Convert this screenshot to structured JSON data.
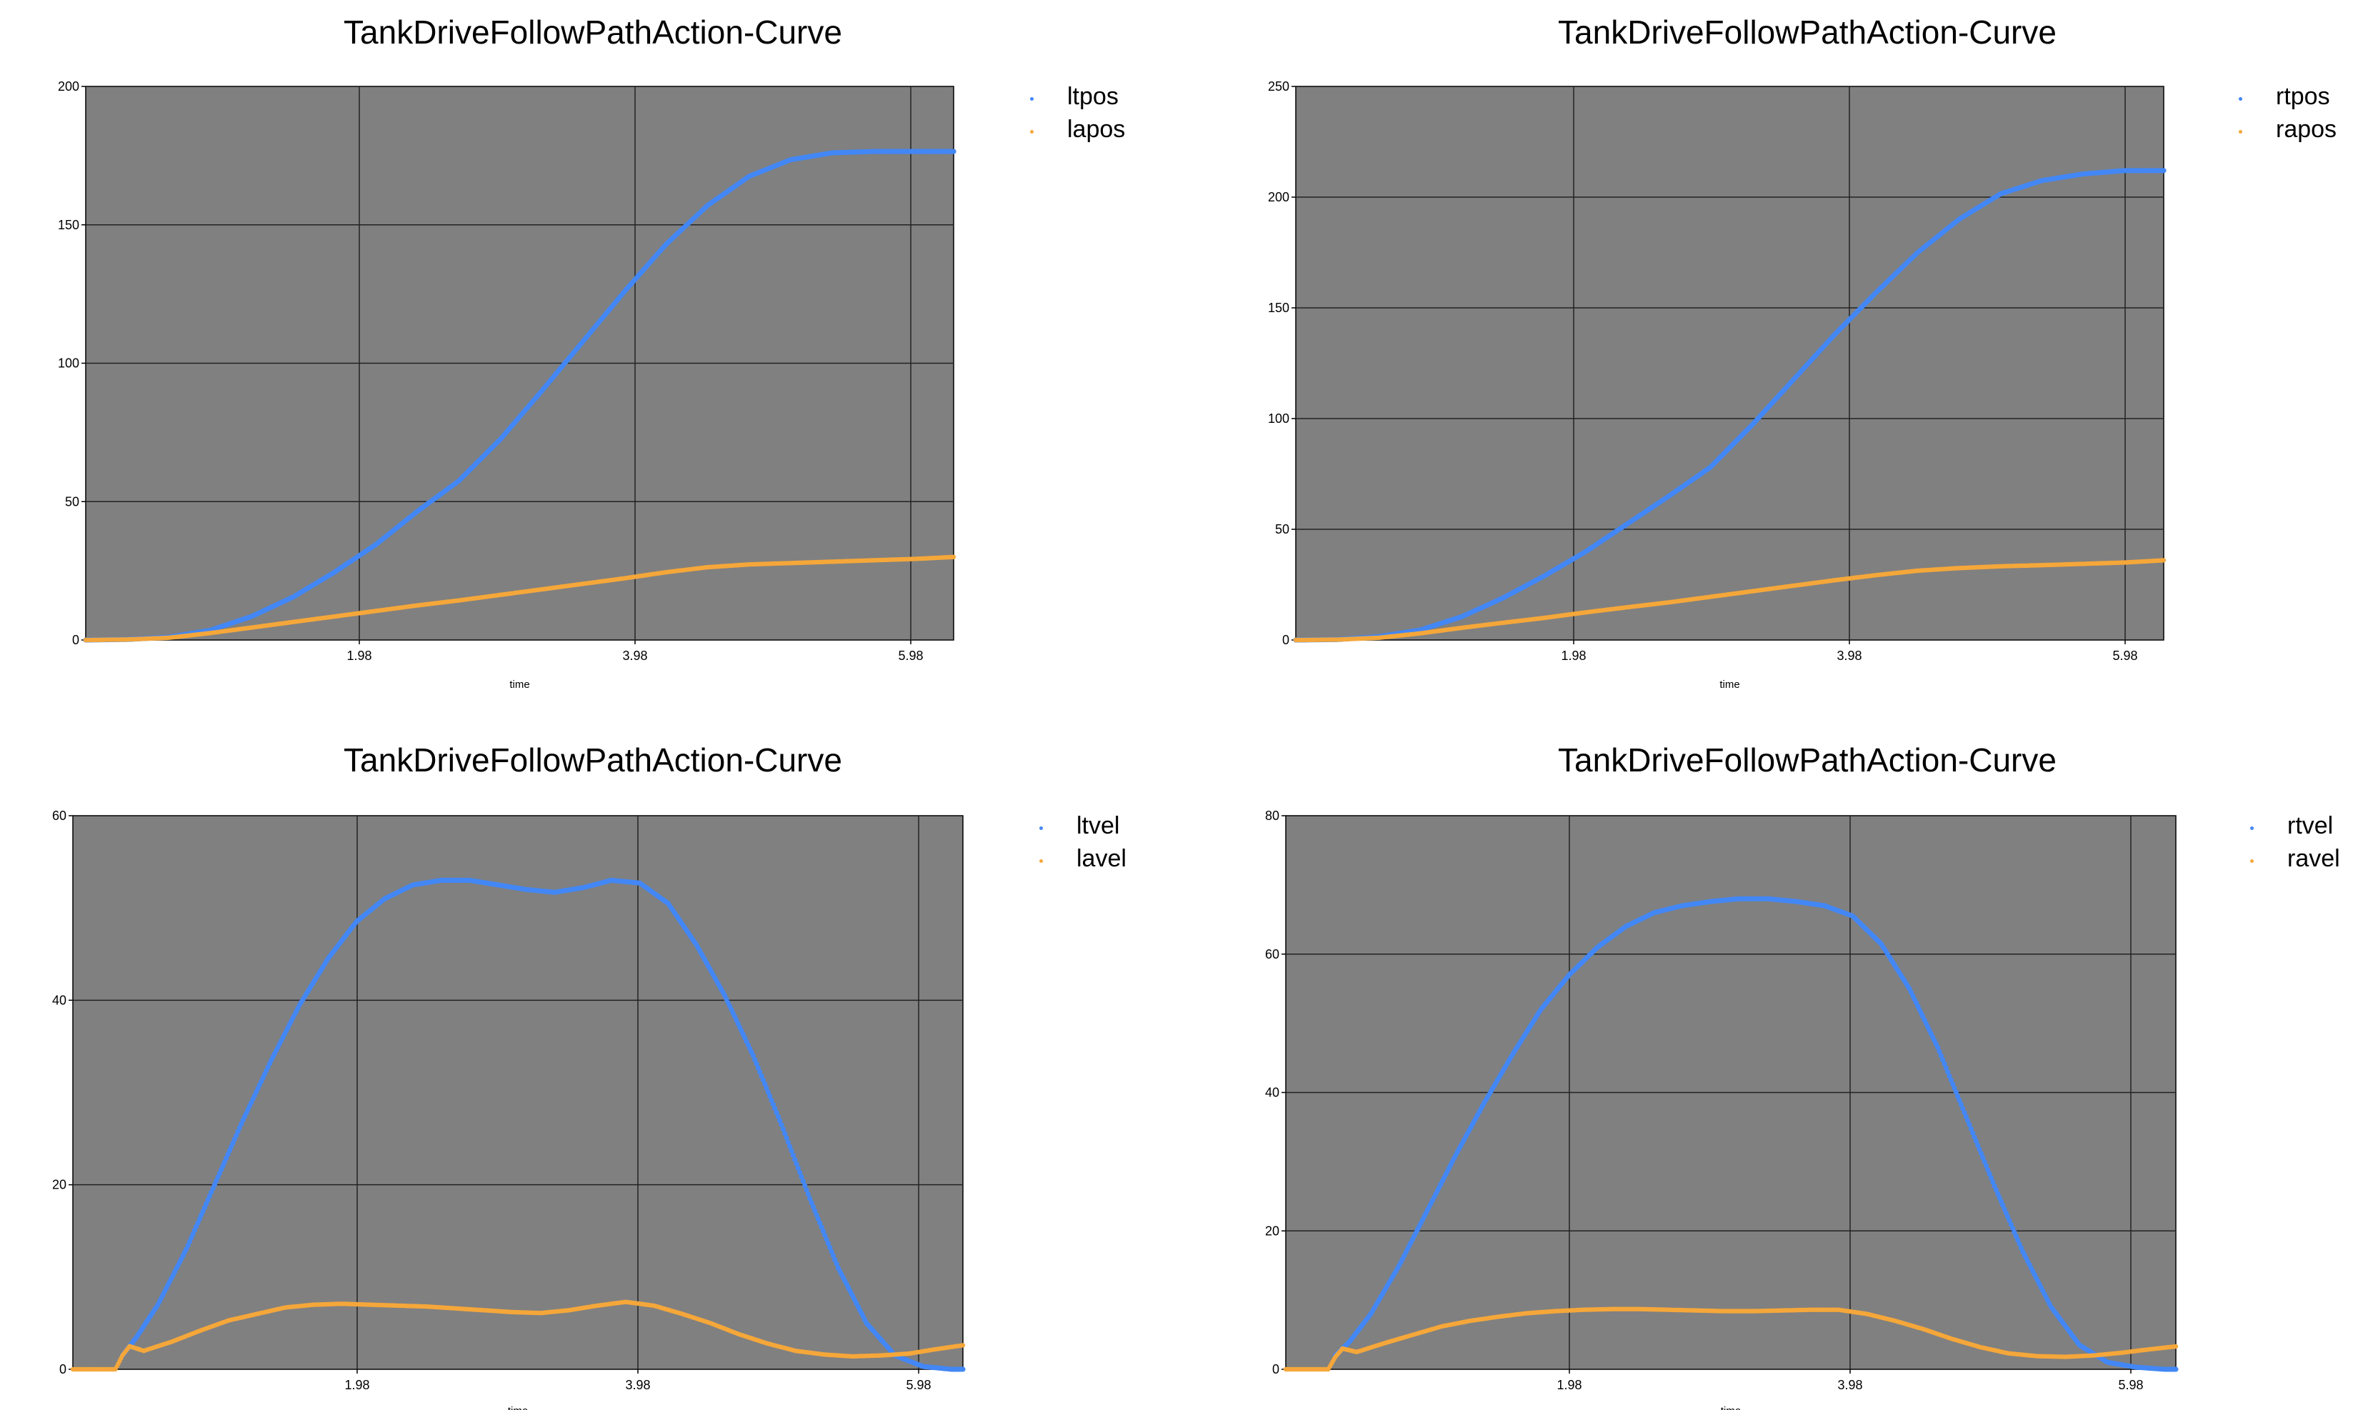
{
  "chart_data": [
    {
      "type": "scatter",
      "title": "TankDriveFollowPathAction-Curve",
      "xlabel": "time",
      "ylabel": "",
      "xlim": [
        0,
        6.28
      ],
      "ylim": [
        0,
        200
      ],
      "xticks": [
        "1.98",
        "3.98",
        "5.98"
      ],
      "yticks": [
        0,
        50,
        100,
        150,
        200
      ],
      "grid": true,
      "legend": "top-right",
      "series": [
        {
          "name": "ltpos",
          "color": "#4287f5",
          "x": [
            0,
            0.3,
            0.6,
            0.9,
            1.2,
            1.5,
            1.8,
            2.1,
            2.4,
            2.7,
            3.0,
            3.3,
            3.6,
            3.9,
            4.2,
            4.5,
            4.8,
            5.1,
            5.4,
            5.7,
            6.0,
            6.28
          ],
          "y": [
            0,
            0.2,
            1,
            3.5,
            8.5,
            15.5,
            24.5,
            34.5,
            46.5,
            57.5,
            72.5,
            90,
            108,
            126,
            143,
            157,
            167.5,
            173.5,
            176,
            176.5,
            176.5,
            176.5
          ]
        },
        {
          "name": "lapos",
          "color": "#f5a73a",
          "x": [
            0,
            0.3,
            0.6,
            0.9,
            1.2,
            1.5,
            1.8,
            2.1,
            2.4,
            2.7,
            3.0,
            3.3,
            3.6,
            3.9,
            4.2,
            4.5,
            4.8,
            5.1,
            5.4,
            5.7,
            6.0,
            6.28
          ],
          "y": [
            0,
            0.2,
            0.8,
            2.5,
            4.5,
            6.5,
            8.5,
            10.5,
            12.5,
            14.3,
            16.3,
            18.3,
            20.3,
            22.3,
            24.5,
            26.3,
            27.3,
            27.8,
            28.3,
            28.8,
            29.3,
            30
          ]
        }
      ]
    },
    {
      "type": "scatter",
      "title": "TankDriveFollowPathAction-Curve",
      "xlabel": "time",
      "ylabel": "",
      "xlim": [
        0,
        6.28
      ],
      "ylim": [
        0,
        250
      ],
      "xticks": [
        "1.98",
        "3.98",
        "5.98"
      ],
      "yticks": [
        0,
        50,
        100,
        150,
        200,
        250
      ],
      "grid": true,
      "legend": "top-right",
      "series": [
        {
          "name": "rtpos",
          "color": "#4287f5",
          "x": [
            0,
            0.3,
            0.6,
            0.9,
            1.2,
            1.5,
            1.8,
            2.1,
            2.4,
            2.7,
            3.0,
            3.3,
            3.6,
            3.9,
            4.2,
            4.5,
            4.8,
            5.1,
            5.4,
            5.7,
            6.0,
            6.28
          ],
          "y": [
            0,
            0.2,
            1.5,
            4.5,
            10.5,
            19,
            29,
            40,
            52.5,
            65,
            78,
            97,
            117.5,
            138,
            157,
            175,
            190,
            201.5,
            207.5,
            210.5,
            212,
            212
          ]
        },
        {
          "name": "rapos",
          "color": "#f5a73a",
          "x": [
            0,
            0.3,
            0.6,
            0.9,
            1.2,
            1.5,
            1.8,
            2.1,
            2.4,
            2.7,
            3.0,
            3.3,
            3.6,
            3.9,
            4.2,
            4.5,
            4.8,
            5.1,
            5.4,
            5.7,
            6.0,
            6.28
          ],
          "y": [
            0,
            0.2,
            1,
            3,
            5.5,
            7.8,
            10,
            12.5,
            14.8,
            17,
            19.5,
            22,
            24.5,
            27,
            29.3,
            31.3,
            32.5,
            33.3,
            33.8,
            34.4,
            35,
            36
          ]
        }
      ]
    },
    {
      "type": "scatter",
      "title": "TankDriveFollowPathAction-Curve",
      "xlabel": "time",
      "ylabel": "",
      "xlim": [
        0,
        6.28
      ],
      "ylim": [
        0,
        60
      ],
      "xticks": [
        "1.98",
        "3.98",
        "5.98"
      ],
      "yticks": [
        0,
        20,
        40,
        60
      ],
      "grid": true,
      "legend": "top-right",
      "series": [
        {
          "name": "ltvel",
          "color": "#4287f5",
          "x": [
            0.35,
            0.45,
            0.6,
            0.8,
            1.0,
            1.2,
            1.4,
            1.6,
            1.8,
            2.0,
            2.2,
            2.4,
            2.6,
            2.8,
            3.0,
            3.2,
            3.4,
            3.6,
            3.8,
            4.0,
            4.2,
            4.4,
            4.6,
            4.8,
            5.0,
            5.2,
            5.4,
            5.6,
            5.8,
            6.0,
            6.2,
            6.28
          ],
          "y": [
            1.5,
            3.5,
            7,
            13,
            20,
            27,
            33.5,
            39.5,
            44.5,
            48.5,
            51,
            52.5,
            53,
            53,
            52.5,
            52,
            51.7,
            52.2,
            53,
            52.7,
            50.5,
            46,
            40.5,
            34,
            26.5,
            18.5,
            11,
            5,
            1.5,
            0.3,
            0,
            0
          ]
        },
        {
          "name": "lavel",
          "color": "#f5a73a",
          "x": [
            0,
            0.1,
            0.2,
            0.3,
            0.35,
            0.4,
            0.5,
            0.7,
            0.9,
            1.1,
            1.3,
            1.5,
            1.7,
            1.9,
            2.1,
            2.3,
            2.5,
            2.7,
            2.9,
            3.1,
            3.3,
            3.5,
            3.7,
            3.9,
            4.1,
            4.3,
            4.5,
            4.7,
            4.9,
            5.1,
            5.3,
            5.5,
            5.7,
            5.9,
            6.1,
            6.28
          ],
          "y": [
            0,
            0,
            0,
            0,
            1.5,
            2.5,
            2,
            3,
            4.2,
            5.3,
            6,
            6.7,
            7,
            7.1,
            7,
            6.9,
            6.8,
            6.6,
            6.4,
            6.2,
            6.1,
            6.4,
            6.9,
            7.3,
            6.9,
            6,
            5,
            3.8,
            2.8,
            2,
            1.6,
            1.4,
            1.5,
            1.7,
            2.2,
            2.6
          ]
        }
      ]
    },
    {
      "type": "scatter",
      "title": "TankDriveFollowPathAction-Curve",
      "xlabel": "time",
      "ylabel": "",
      "xlim": [
        0,
        6.28
      ],
      "ylim": [
        0,
        80
      ],
      "xticks": [
        "1.98",
        "3.98",
        "5.98"
      ],
      "yticks": [
        0,
        20,
        40,
        60,
        80
      ],
      "grid": true,
      "legend": "top-right",
      "series": [
        {
          "name": "rtvel",
          "color": "#4287f5",
          "x": [
            0.35,
            0.45,
            0.6,
            0.8,
            1.0,
            1.2,
            1.4,
            1.6,
            1.8,
            2.0,
            2.2,
            2.4,
            2.6,
            2.8,
            3.0,
            3.2,
            3.4,
            3.6,
            3.8,
            4.0,
            4.2,
            4.4,
            4.6,
            4.8,
            5.0,
            5.2,
            5.4,
            5.6,
            5.8,
            6.0,
            6.2,
            6.28
          ],
          "y": [
            2,
            4,
            8,
            15,
            23,
            31,
            38.5,
            45.5,
            52,
            57,
            61,
            64,
            66,
            67,
            67.6,
            68,
            68,
            67.6,
            67,
            65.5,
            61.5,
            55,
            46.5,
            36.5,
            26.5,
            17,
            9,
            3.5,
            1,
            0.3,
            0,
            0
          ]
        },
        {
          "name": "ravel",
          "color": "#f5a73a",
          "x": [
            0,
            0.1,
            0.2,
            0.3,
            0.35,
            0.4,
            0.5,
            0.7,
            0.9,
            1.1,
            1.3,
            1.5,
            1.7,
            1.9,
            2.1,
            2.3,
            2.5,
            2.7,
            2.9,
            3.1,
            3.3,
            3.5,
            3.7,
            3.9,
            4.1,
            4.3,
            4.5,
            4.7,
            4.9,
            5.1,
            5.3,
            5.5,
            5.7,
            5.9,
            6.1,
            6.28
          ],
          "y": [
            0,
            0,
            0,
            0,
            1.8,
            3,
            2.5,
            3.8,
            5,
            6.2,
            7,
            7.6,
            8.1,
            8.4,
            8.6,
            8.7,
            8.7,
            8.6,
            8.5,
            8.4,
            8.4,
            8.5,
            8.6,
            8.6,
            8,
            7,
            5.8,
            4.4,
            3.2,
            2.3,
            1.9,
            1.8,
            2,
            2.4,
            2.9,
            3.3
          ]
        }
      ]
    }
  ]
}
